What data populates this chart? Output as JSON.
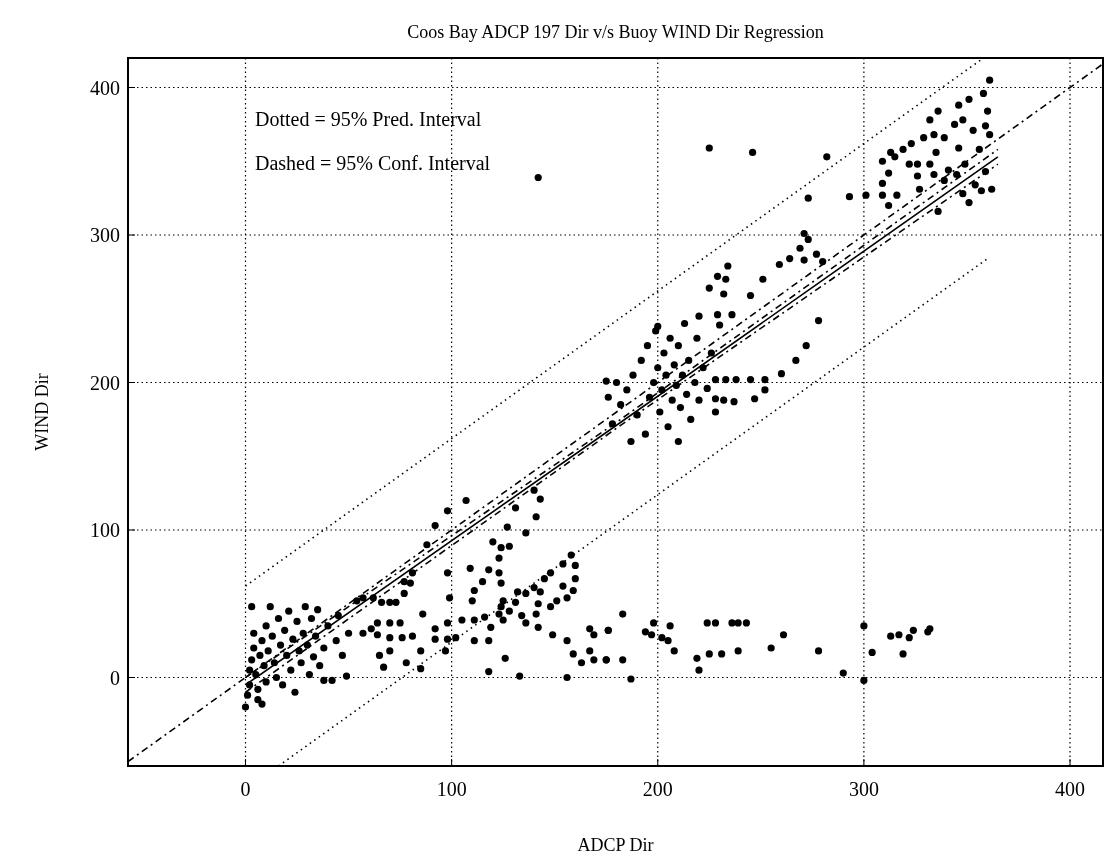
{
  "chart_data": {
    "type": "scatter",
    "title": "Coos Bay ADCP 197 Dir  v/s Buoy WIND Dir Regression",
    "xlabel": "ADCP Dir",
    "ylabel": "WIND Dir",
    "annotations": [
      "Dotted = 95% Pred. Interval",
      "Dashed = 95% Conf. Interval"
    ],
    "xlim": [
      -57,
      416
    ],
    "ylim": [
      -60,
      420
    ],
    "xticks": [
      0,
      100,
      200,
      300,
      400
    ],
    "yticks": [
      0,
      100,
      200,
      300,
      400
    ],
    "grid": true,
    "series": [
      {
        "color": "#000000",
        "marker": "circle",
        "x": [
          361,
          358,
          351,
          346,
          360,
          336,
          332,
          348,
          359,
          361,
          344,
          353,
          334,
          339,
          329,
          323,
          319,
          346,
          356,
          335,
          313,
          315,
          309,
          322,
          326,
          332,
          349,
          341,
          334,
          326,
          312,
          345,
          359,
          309,
          354,
          339,
          327,
          357,
          362,
          348,
          316,
          309,
          312,
          351,
          336,
          301,
          293,
          273,
          282,
          246,
          225,
          142,
          271,
          273,
          269,
          264,
          271,
          277,
          280,
          259,
          251,
          234,
          229,
          233,
          225,
          232,
          245,
          220,
          229,
          236,
          230,
          278,
          272,
          267,
          260,
          252,
          245,
          238,
          233,
          228,
          252,
          247,
          237,
          232,
          228,
          175,
          107,
          98,
          92,
          88,
          131,
          141,
          143,
          140,
          127,
          136,
          128,
          124,
          123,
          120,
          109,
          118,
          123,
          98,
          80,
          115,
          124,
          158,
          154,
          160,
          148,
          145,
          160,
          154,
          159,
          156,
          151,
          143,
          140,
          136,
          132,
          125,
          131,
          124,
          128,
          110,
          111,
          142,
          148,
          141,
          77,
          73,
          66,
          99,
          75,
          86,
          92,
          98,
          105,
          111,
          116,
          123,
          119,
          125,
          134,
          136,
          142,
          149,
          156,
          159,
          163,
          167,
          167,
          176,
          175,
          156,
          133,
          118,
          126,
          111,
          118,
          102,
          97,
          85,
          85,
          78,
          70,
          65,
          67,
          49,
          38,
          57,
          64,
          70,
          76,
          81,
          92,
          98,
          64,
          70,
          61,
          54,
          57,
          62,
          70,
          81,
          77,
          183,
          176,
          169,
          169,
          175,
          183,
          187,
          194,
          198,
          197,
          202,
          205,
          208,
          206,
          224,
          228,
          236,
          239,
          243,
          219,
          220,
          225,
          231,
          239,
          255,
          261,
          278,
          290,
          300,
          300,
          304,
          313,
          317,
          322,
          324,
          331,
          332,
          319,
          178,
          182,
          185,
          188,
          190,
          192,
          195,
          196,
          198,
          199,
          200,
          201,
          202,
          203,
          204,
          205,
          206,
          207,
          208,
          209,
          210,
          211,
          212,
          213,
          214,
          215,
          216,
          218,
          219,
          220,
          222,
          224,
          226,
          228,
          194,
          187,
          200,
          210,
          180,
          176,
          0,
          1,
          2,
          2,
          3,
          4,
          4,
          3,
          5,
          6,
          7,
          8,
          9,
          10,
          10,
          11,
          12,
          13,
          14,
          15,
          16,
          17,
          18,
          19,
          20,
          21,
          22,
          23,
          24,
          25,
          26,
          27,
          28,
          29,
          30,
          31,
          32,
          33,
          34,
          35,
          36,
          38,
          40,
          42,
          44,
          45,
          47,
          50,
          6,
          8
        ],
        "values": [
          405,
          396,
          392,
          388,
          384,
          384,
          378,
          378,
          374,
          368,
          375,
          371,
          368,
          366,
          366,
          362,
          358,
          359,
          358,
          356,
          356,
          353,
          350,
          348,
          348,
          348,
          348,
          344,
          341,
          340,
          342,
          341,
          343,
          335,
          334,
          337,
          331,
          330,
          331,
          328,
          327,
          327,
          320,
          322,
          316,
          327,
          326,
          325,
          353,
          356,
          359,
          339,
          301,
          297,
          291,
          284,
          283,
          287,
          282,
          280,
          270,
          279,
          272,
          270,
          264,
          260,
          259,
          245,
          246,
          246,
          239,
          242,
          225,
          215,
          206,
          202,
          202,
          202,
          202,
          202,
          195,
          189,
          187,
          188,
          189,
          201,
          120,
          113,
          103,
          90,
          115,
          109,
          121,
          127,
          102,
          98,
          89,
          88,
          81,
          92,
          74,
          73,
          71,
          71,
          64,
          65,
          64,
          83,
          77,
          76,
          71,
          67,
          67,
          62,
          59,
          54,
          52,
          58,
          61,
          57,
          58,
          52,
          51,
          48,
          45,
          52,
          59,
          50,
          48,
          43,
          57,
          51,
          51,
          54,
          37,
          43,
          33,
          37,
          39,
          39,
          41,
          43,
          34,
          39,
          42,
          37,
          34,
          29,
          25,
          16,
          10,
          18,
          33,
          32,
          12,
          0,
          1,
          4,
          13,
          25,
          25,
          27,
          18,
          18,
          6,
          10,
          18,
          15,
          7,
          1,
          -2,
          30,
          29,
          27,
          27,
          28,
          26,
          26,
          37,
          37,
          33,
          52,
          54,
          54,
          51,
          71,
          65,
          43,
          32,
          29,
          12,
          12,
          12,
          -1,
          31,
          37,
          29,
          27,
          25,
          18,
          35,
          37,
          37,
          37,
          37,
          37,
          13,
          5,
          16,
          16,
          18,
          20,
          29,
          18,
          3,
          35,
          -2,
          17,
          28,
          29,
          27,
          32,
          31,
          33,
          16,
          172,
          185,
          195,
          205,
          178,
          215,
          225,
          190,
          200,
          235,
          210,
          180,
          195,
          220,
          205,
          170,
          230,
          188,
          212,
          198,
          225,
          183,
          205,
          240,
          192,
          215,
          175,
          200,
          230,
          188,
          210,
          196,
          220,
          180,
          165,
          160,
          238,
          160,
          200,
          190,
          -20,
          -12,
          -5,
          5,
          12,
          20,
          30,
          48,
          2,
          -8,
          15,
          25,
          8,
          35,
          -3,
          18,
          48,
          28,
          10,
          0,
          40,
          22,
          -5,
          32,
          15,
          45,
          5,
          26,
          -10,
          38,
          18,
          10,
          30,
          48,
          22,
          2,
          40,
          14,
          28,
          46,
          8,
          20,
          35,
          -2,
          25,
          42,
          15,
          30,
          -15,
          -18
        ]
      },
      {
        "type": "line",
        "color": "#000000",
        "line_style": "solid",
        "x": [
          0,
          180,
          365
        ],
        "values": [
          -5,
          171,
          353
        ]
      },
      {
        "type": "line",
        "color": "#000000",
        "line_style": "dashed",
        "x": [
          0,
          180,
          365
        ],
        "values": [
          -10,
          169,
          348
        ]
      },
      {
        "type": "line",
        "color": "#000000",
        "line_style": "dashed",
        "x": [
          0,
          180,
          365
        ],
        "values": [
          0,
          173,
          358
        ]
      },
      {
        "type": "line",
        "color": "#000000",
        "line_style": "dotted",
        "x": [
          0,
          358
        ],
        "values": [
          62,
          420
        ]
      },
      {
        "type": "line",
        "color": "#000000",
        "line_style": "dotted",
        "x": [
          16,
          361
        ],
        "values": [
          -60,
          285
        ]
      },
      {
        "type": "line",
        "color": "#000000",
        "line_style": "dashed",
        "x": [
          -57,
          416
        ],
        "values": [
          -57,
          416
        ]
      }
    ]
  }
}
